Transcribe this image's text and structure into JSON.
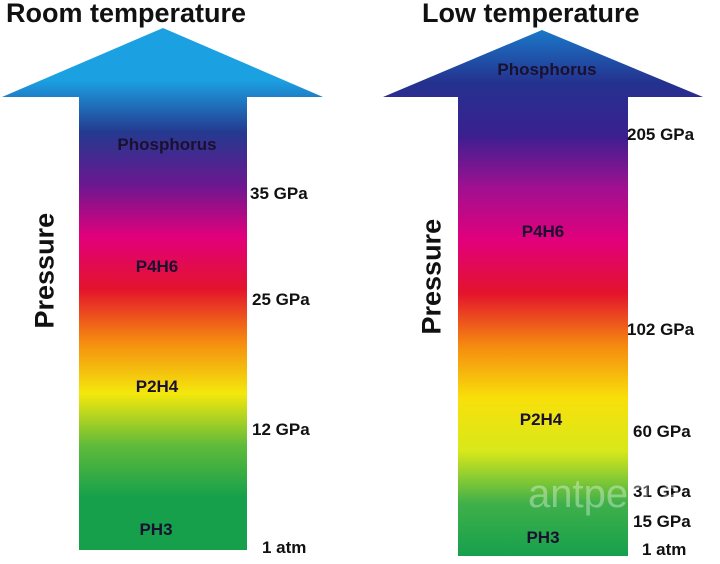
{
  "panels": [
    {
      "title": "Room temperature",
      "axis_label": "Pressure",
      "phases": [
        "Phosphorus",
        "P4H6",
        "P2H4",
        "PH3"
      ],
      "pressures": [
        "35 GPa",
        "25 GPa",
        "12 GPa",
        "1 atm"
      ],
      "gradient_colors": [
        "#1ba1e2",
        "#1ba1e2",
        "#24398f",
        "#6a1890",
        "#e2007c",
        "#e3132c",
        "#f58a10",
        "#f4e80c",
        "#5fbb3a",
        "#16a04c",
        "#16a04c"
      ]
    },
    {
      "title": "Low temperature",
      "axis_label": "Pressure",
      "phases": [
        "Phosphorus",
        "P4H6",
        "P2H4",
        "PH3"
      ],
      "pressures": [
        "205 GPa",
        "102 GPa",
        "60 GPa",
        "31 GPa",
        "15 GPa",
        "1 atm"
      ],
      "gradient_colors": [
        "#1a78c8",
        "#24328f",
        "#3a2090",
        "#a01090",
        "#e2007c",
        "#e3132c",
        "#f58a10",
        "#f8e00a",
        "#d8e81a",
        "#3fb04a",
        "#16a04c"
      ]
    }
  ],
  "watermark": "antpedia"
}
